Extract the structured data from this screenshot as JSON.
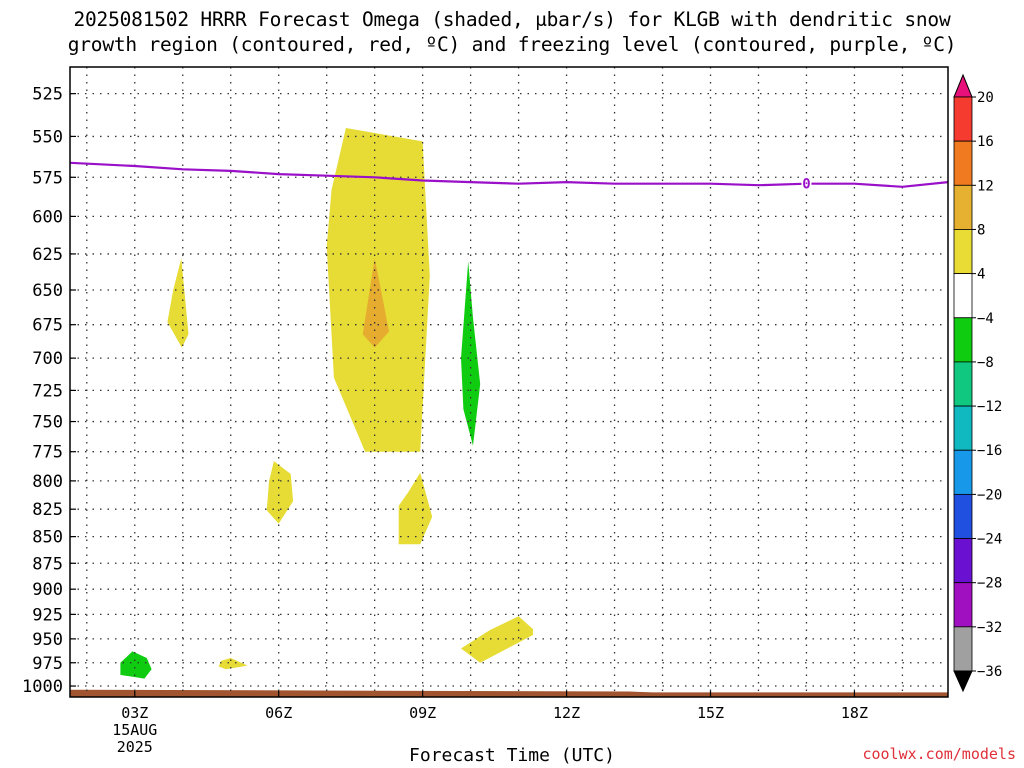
{
  "title": {
    "line1": "2025081502 HRRR Forecast Omega (shaded, μbar/s) for KLGB with dendritic snow",
    "line2": "growth region (contoured, red, ºC) and freezing level (contoured, purple, ºC)"
  },
  "credit": "coolwx.com/models",
  "chart_data": {
    "type": "heatmap",
    "xlabel": "Forecast Time (UTC)",
    "ylabel": "",
    "x_unit": "hours since 2025-08-15 00Z",
    "xlim": [
      1.65,
      19.95
    ],
    "ylim": [
      1012,
      510
    ],
    "y_scale": "log-pressure",
    "x_ticks": [
      {
        "x": 3,
        "lines": [
          "03Z",
          "15AUG",
          "2025"
        ]
      },
      {
        "x": 6,
        "lines": [
          "06Z"
        ]
      },
      {
        "x": 9,
        "lines": [
          "09Z"
        ]
      },
      {
        "x": 12,
        "lines": [
          "12Z"
        ]
      },
      {
        "x": 15,
        "lines": [
          "15Z"
        ]
      },
      {
        "x": 18,
        "lines": [
          "18Z"
        ]
      }
    ],
    "y_ticks": [
      525,
      550,
      575,
      600,
      625,
      650,
      675,
      700,
      725,
      750,
      775,
      800,
      825,
      850,
      875,
      900,
      925,
      950,
      975,
      1000
    ],
    "x_grid": [
      2,
      3,
      4,
      5,
      6,
      7,
      8,
      9,
      10,
      11,
      12,
      13,
      14,
      15,
      16,
      17,
      18,
      19
    ],
    "grid": true,
    "colorbar": {
      "labels": [
        "20",
        "16",
        "12",
        "8",
        "4",
        "−4",
        "−8",
        "−12",
        "−16",
        "−20",
        "−24",
        "−28",
        "−32",
        "−36"
      ],
      "colors": [
        "#e8107a",
        "#f53a30",
        "#f07a20",
        "#e6b030",
        "#e8dc35",
        "#ffffff",
        "#10cc10",
        "#10c880",
        "#10b8c0",
        "#1898e8",
        "#2050e0",
        "#6a10d0",
        "#a010c0",
        "#a0a0a0",
        "#000000"
      ]
    },
    "omega_regions": [
      {
        "label": "4 to 8",
        "color": "#e6dc35",
        "points": [
          [
            7.4,
            545
          ],
          [
            9.0,
            553
          ],
          [
            9.15,
            640
          ],
          [
            8.95,
            775
          ],
          [
            7.8,
            775
          ],
          [
            7.15,
            715
          ],
          [
            7.0,
            620
          ],
          [
            7.1,
            583
          ]
        ]
      },
      {
        "label": "8 to 12",
        "color": "#e6ac30",
        "points": [
          [
            8.0,
            628
          ],
          [
            8.3,
            680
          ],
          [
            8.0,
            692
          ],
          [
            7.75,
            682
          ]
        ]
      },
      {
        "label": "4 to 8",
        "color": "#e6dc35",
        "points": [
          [
            3.97,
            628
          ],
          [
            4.12,
            682
          ],
          [
            3.98,
            692
          ],
          [
            3.68,
            673
          ],
          [
            3.8,
            650
          ]
        ]
      },
      {
        "label": "-8 to -4",
        "color": "#10cc10",
        "points": [
          [
            9.95,
            630
          ],
          [
            10.05,
            670
          ],
          [
            10.2,
            720
          ],
          [
            10.05,
            770
          ],
          [
            9.85,
            740
          ],
          [
            9.8,
            700
          ]
        ]
      },
      {
        "label": "4 to 8",
        "color": "#e6dc35",
        "points": [
          [
            5.9,
            783
          ],
          [
            6.25,
            794
          ],
          [
            6.3,
            818
          ],
          [
            6.0,
            838
          ],
          [
            5.75,
            826
          ],
          [
            5.8,
            800
          ]
        ]
      },
      {
        "label": "4 to 8",
        "color": "#e6dc35",
        "points": [
          [
            8.95,
            793
          ],
          [
            9.2,
            832
          ],
          [
            8.95,
            857
          ],
          [
            8.5,
            857
          ],
          [
            8.5,
            822
          ],
          [
            8.7,
            810
          ]
        ]
      },
      {
        "label": "4 to 8",
        "color": "#e6dc35",
        "points": [
          [
            11.0,
            927
          ],
          [
            11.3,
            940
          ],
          [
            11.3,
            946
          ],
          [
            10.2,
            975
          ],
          [
            9.8,
            960
          ],
          [
            10.4,
            941
          ]
        ]
      },
      {
        "label": "-8 to -4",
        "color": "#10cc10",
        "points": [
          [
            2.95,
            963
          ],
          [
            3.25,
            970
          ],
          [
            3.35,
            982
          ],
          [
            3.2,
            992
          ],
          [
            2.7,
            988
          ],
          [
            2.7,
            975
          ]
        ]
      },
      {
        "label": "4 to 8",
        "color": "#e6dc35",
        "points": [
          [
            4.8,
            973
          ],
          [
            5.0,
            970
          ],
          [
            5.35,
            978
          ],
          [
            4.9,
            982
          ],
          [
            4.75,
            979
          ]
        ]
      }
    ],
    "freezing_level": {
      "label": "0",
      "label_x": 17.0,
      "color": "#9910c8",
      "x": [
        1.65,
        3.0,
        4.0,
        5.0,
        6.0,
        7.0,
        8.0,
        9.0,
        10.0,
        11.0,
        12.0,
        13.0,
        14.0,
        15.0,
        16.0,
        17.0,
        18.0,
        19.0,
        19.95
      ],
      "p": [
        566,
        568,
        570,
        571,
        573,
        574,
        575,
        577,
        578,
        579,
        578,
        579,
        579,
        579,
        580,
        579,
        579,
        581,
        578
      ]
    },
    "terrain": {
      "color": "#a05530",
      "x": [
        1.65,
        13.3,
        13.8,
        19.95
      ],
      "p": [
        1004,
        1006,
        1007,
        1007
      ]
    }
  }
}
